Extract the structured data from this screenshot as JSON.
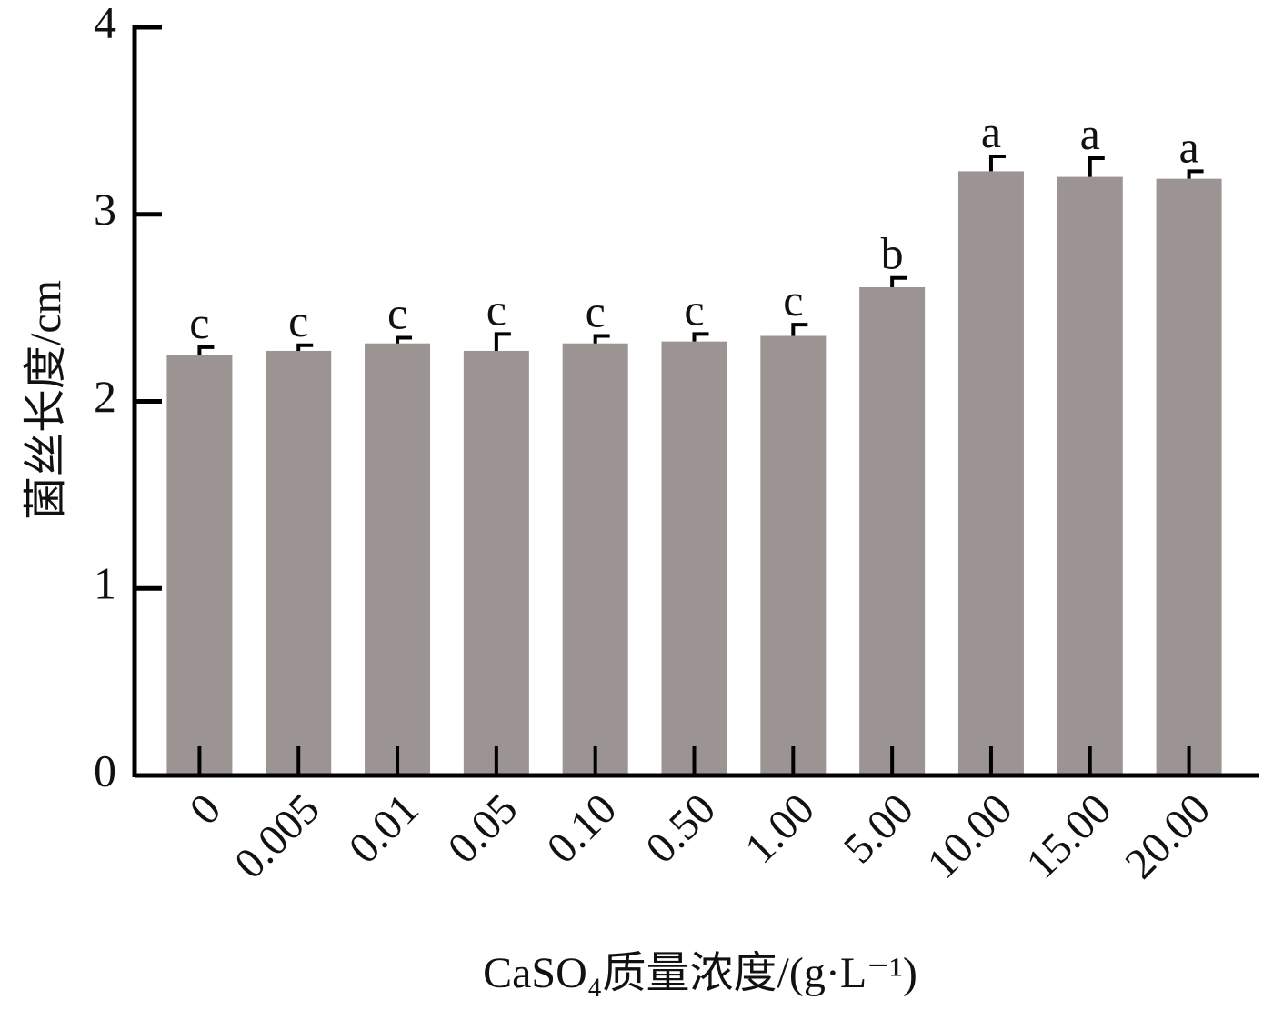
{
  "chart_data": {
    "type": "bar",
    "ylabel": "菌丝长度/cm",
    "xlabel": "CaSO₄质量浓度/(g·L⁻¹)",
    "categories": [
      "0",
      "0.005",
      "0.01",
      "0.05",
      "0.10",
      "0.50",
      "1.00",
      "5.00",
      "10.00",
      "15.00",
      "20.00"
    ],
    "values": [
      2.25,
      2.27,
      2.31,
      2.27,
      2.31,
      2.32,
      2.35,
      2.61,
      3.23,
      3.2,
      3.19
    ],
    "errors": [
      0.04,
      0.03,
      0.03,
      0.09,
      0.04,
      0.04,
      0.06,
      0.05,
      0.08,
      0.1,
      0.04
    ],
    "letters": [
      "c",
      "c",
      "c",
      "c",
      "c",
      "c",
      "c",
      "b",
      "a",
      "a",
      "a"
    ],
    "color": "#9c9393",
    "ylim": [
      0,
      4
    ],
    "yticks": [
      0,
      1,
      2,
      3,
      4
    ]
  }
}
